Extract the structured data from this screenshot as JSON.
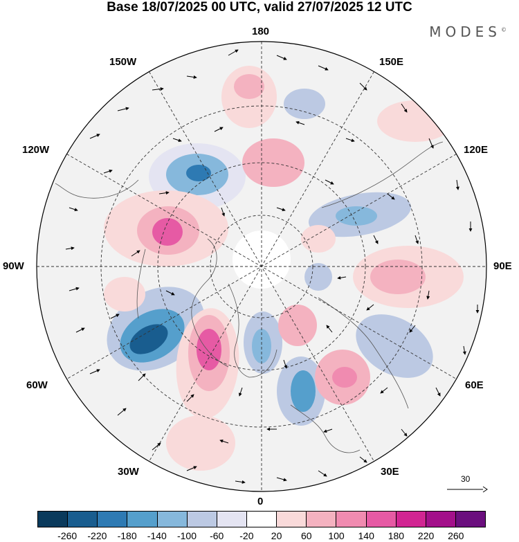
{
  "title": "Base 18/07/2025 00 UTC, valid 27/07/2025 12 UTC",
  "brand": "MODES",
  "brand_mark": "©",
  "longitude_labels": {
    "lon180": "180",
    "lon150w": "150W",
    "lon150e": "150E",
    "lon120w": "120W",
    "lon120e": "120E",
    "lon90w": "90W",
    "lon90e": "90E",
    "lon60w": "60W",
    "lon60e": "60E",
    "lon30w": "30W",
    "lon30e": "30E",
    "lon0": "0"
  },
  "reference_vector": "30",
  "colorbar": {
    "colors": [
      "#0a3a5c",
      "#195d8f",
      "#2e7ab3",
      "#559fcc",
      "#86b8dc",
      "#bcc9e3",
      "#e4e4f2",
      "#ffffff",
      "#f9dada",
      "#f4b2c0",
      "#f08bb0",
      "#e65aa4",
      "#d12592",
      "#a3108a",
      "#6b0f7e"
    ],
    "ticks": [
      "-260",
      "-220",
      "-180",
      "-140",
      "-100",
      "-60",
      "-20",
      "20",
      "60",
      "100",
      "140",
      "180",
      "220",
      "260"
    ]
  },
  "anomaly_colors": {
    "positive_weak": "#f9dada",
    "positive_mid": "#f4b2c0",
    "positive_strong": "#f08bb0",
    "positive_max": "#e65aa4",
    "negative_weak": "#e4e4f2",
    "negative_mid": "#bcc9e3",
    "negative_strong": "#86b8dc",
    "negative_max": "#195d8f"
  }
}
